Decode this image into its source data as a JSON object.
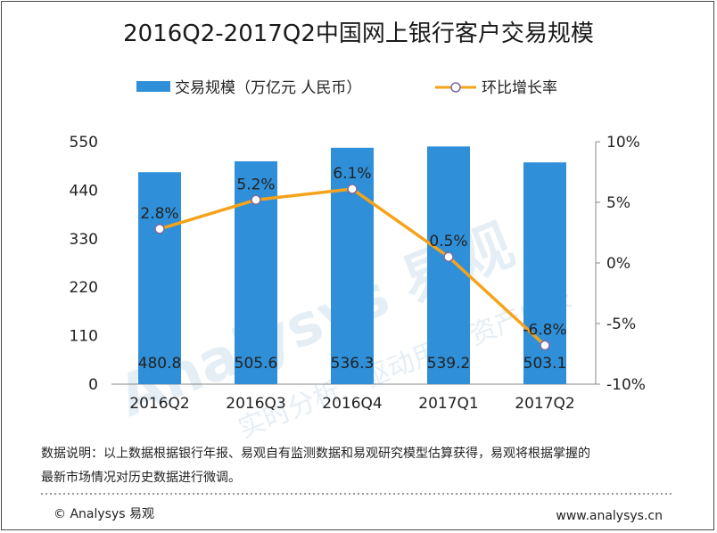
{
  "title": "2016Q2-2017Q2中国网上银行客户交易规模",
  "legend": {
    "bar_label": "交易规模（万亿元 人民币）",
    "line_label": "环比增长率"
  },
  "watermark": {
    "brand": "Analysys 易观",
    "slogan_left": "实时分析",
    "slogan_right": "驱动用户 资产成长"
  },
  "chart_data": {
    "type": "bar",
    "categories": [
      "2016Q2",
      "2016Q3",
      "2016Q4",
      "2017Q1",
      "2017Q2"
    ],
    "series": [
      {
        "name": "交易规模（万亿元 人民币）",
        "type": "bar",
        "values": [
          480.8,
          505.6,
          536.3,
          539.2,
          503.1
        ],
        "labels": [
          "480.8",
          "505.6",
          "536.3",
          "539.2",
          "503.1"
        ],
        "axis": "left"
      },
      {
        "name": "环比增长率",
        "type": "line",
        "values": [
          2.8,
          5.2,
          6.1,
          0.5,
          -6.8
        ],
        "labels": [
          "2.8%",
          "5.2%",
          "6.1%",
          "0.5%",
          "-6.8%"
        ],
        "axis": "right"
      }
    ],
    "y_left": {
      "ticks": [
        "550",
        "440",
        "330",
        "220",
        "110",
        "0"
      ],
      "tick_values": [
        550,
        440,
        330,
        220,
        110,
        0
      ],
      "lim": [
        0,
        550
      ]
    },
    "y_right": {
      "ticks": [
        "10%",
        "5%",
        "0%",
        "-5%",
        "-10%"
      ],
      "tick_values": [
        10,
        5,
        0,
        -5,
        -10
      ],
      "lim": [
        -10,
        10
      ]
    },
    "grid": false,
    "legend_position": "top-center",
    "colors": {
      "bar": "#2f8fd8",
      "line": "#f5a31a",
      "marker_fill": "#ffffff",
      "marker_stroke": "#7a6aa0"
    }
  },
  "note": {
    "line1": "数据说明：以上数据根据银行年报、易观自有监测数据和易观研究模型估算获得，易观将根据掌握的",
    "line2": "最新市场情况对历史数据进行微调。"
  },
  "footer": {
    "copyright": "© Analysys 易观",
    "url": "www.analysys.cn"
  }
}
